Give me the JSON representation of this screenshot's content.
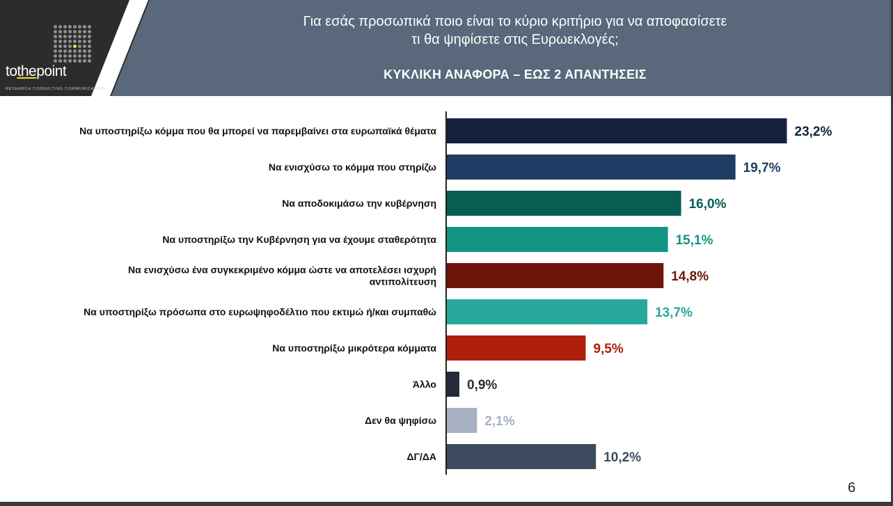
{
  "logo": {
    "word_1": "to",
    "word_2": "the",
    "word_3": "point",
    "tagline": "RESEARCH  CONSULTING  COMMUNICATION"
  },
  "header": {
    "title_line_1": "Για εσάς προσωπικά ποιο είναι το κύριο κριτήριο για να αποφασίσετε",
    "title_line_2": "τι θα ψηφίσετε στις Ευρωεκλογές;",
    "subtitle": "ΚΥΚΛΙΚΗ ΑΝΑΦΟΡΑ – ΕΩΣ 2 ΑΠΑΝΤΗΣΕΙΣ"
  },
  "chart_data": {
    "type": "bar",
    "orientation": "horizontal",
    "xlim": [
      0,
      25
    ],
    "grid": false,
    "categories": [
      [
        "Να υποστηρίξω κόμμα που θα μπορεί να παρεμβαίνει στα ευρωπαϊκά θέματα"
      ],
      [
        "Να ενισχύσω το κόμμα που στηρίζω"
      ],
      [
        "Να αποδοκιμάσω την κυβέρνηση"
      ],
      [
        "Να υποστηρίξω την Κυβέρνηση για να έχουμε σταθερότητα"
      ],
      [
        "Να ενισχύσω ένα συγκεκριμένο κόμμα ώστε να αποτελέσει ισχυρή",
        "αντιπολίτευση"
      ],
      [
        "Να υποστηρίξω πρόσωπα στο ευρωψηφοδέλτιο που εκτιμώ ή/και συμπαθώ"
      ],
      [
        "Να υποστηρίξω μικρότερα κόμματα"
      ],
      [
        "Άλλο"
      ],
      [
        "Δεν θα ψηφίσω"
      ],
      [
        "ΔΓ/ΔΑ"
      ]
    ],
    "values": [
      23.2,
      19.7,
      16.0,
      15.1,
      14.8,
      13.7,
      9.5,
      0.9,
      2.1,
      10.2
    ],
    "value_labels": [
      "23,2%",
      "19,7%",
      "16,0%",
      "15,1%",
      "14,8%",
      "13,7%",
      "9,5%",
      "0,9%",
      "2,1%",
      "10,2%"
    ],
    "bar_colors": [
      "#14213d",
      "#1f3c64",
      "#075e52",
      "#129483",
      "#6e1509",
      "#27a99d",
      "#ac1f0a",
      "#252c38",
      "#a7b1c2",
      "#3e4b5e"
    ],
    "label_colors": [
      "#14213d",
      "#1f3c64",
      "#075e52",
      "#129483",
      "#6e1509",
      "#27a99d",
      "#ac1f0a",
      "#252c38",
      "#a7b1c2",
      "#3e4b5e"
    ]
  },
  "page_number": "6"
}
